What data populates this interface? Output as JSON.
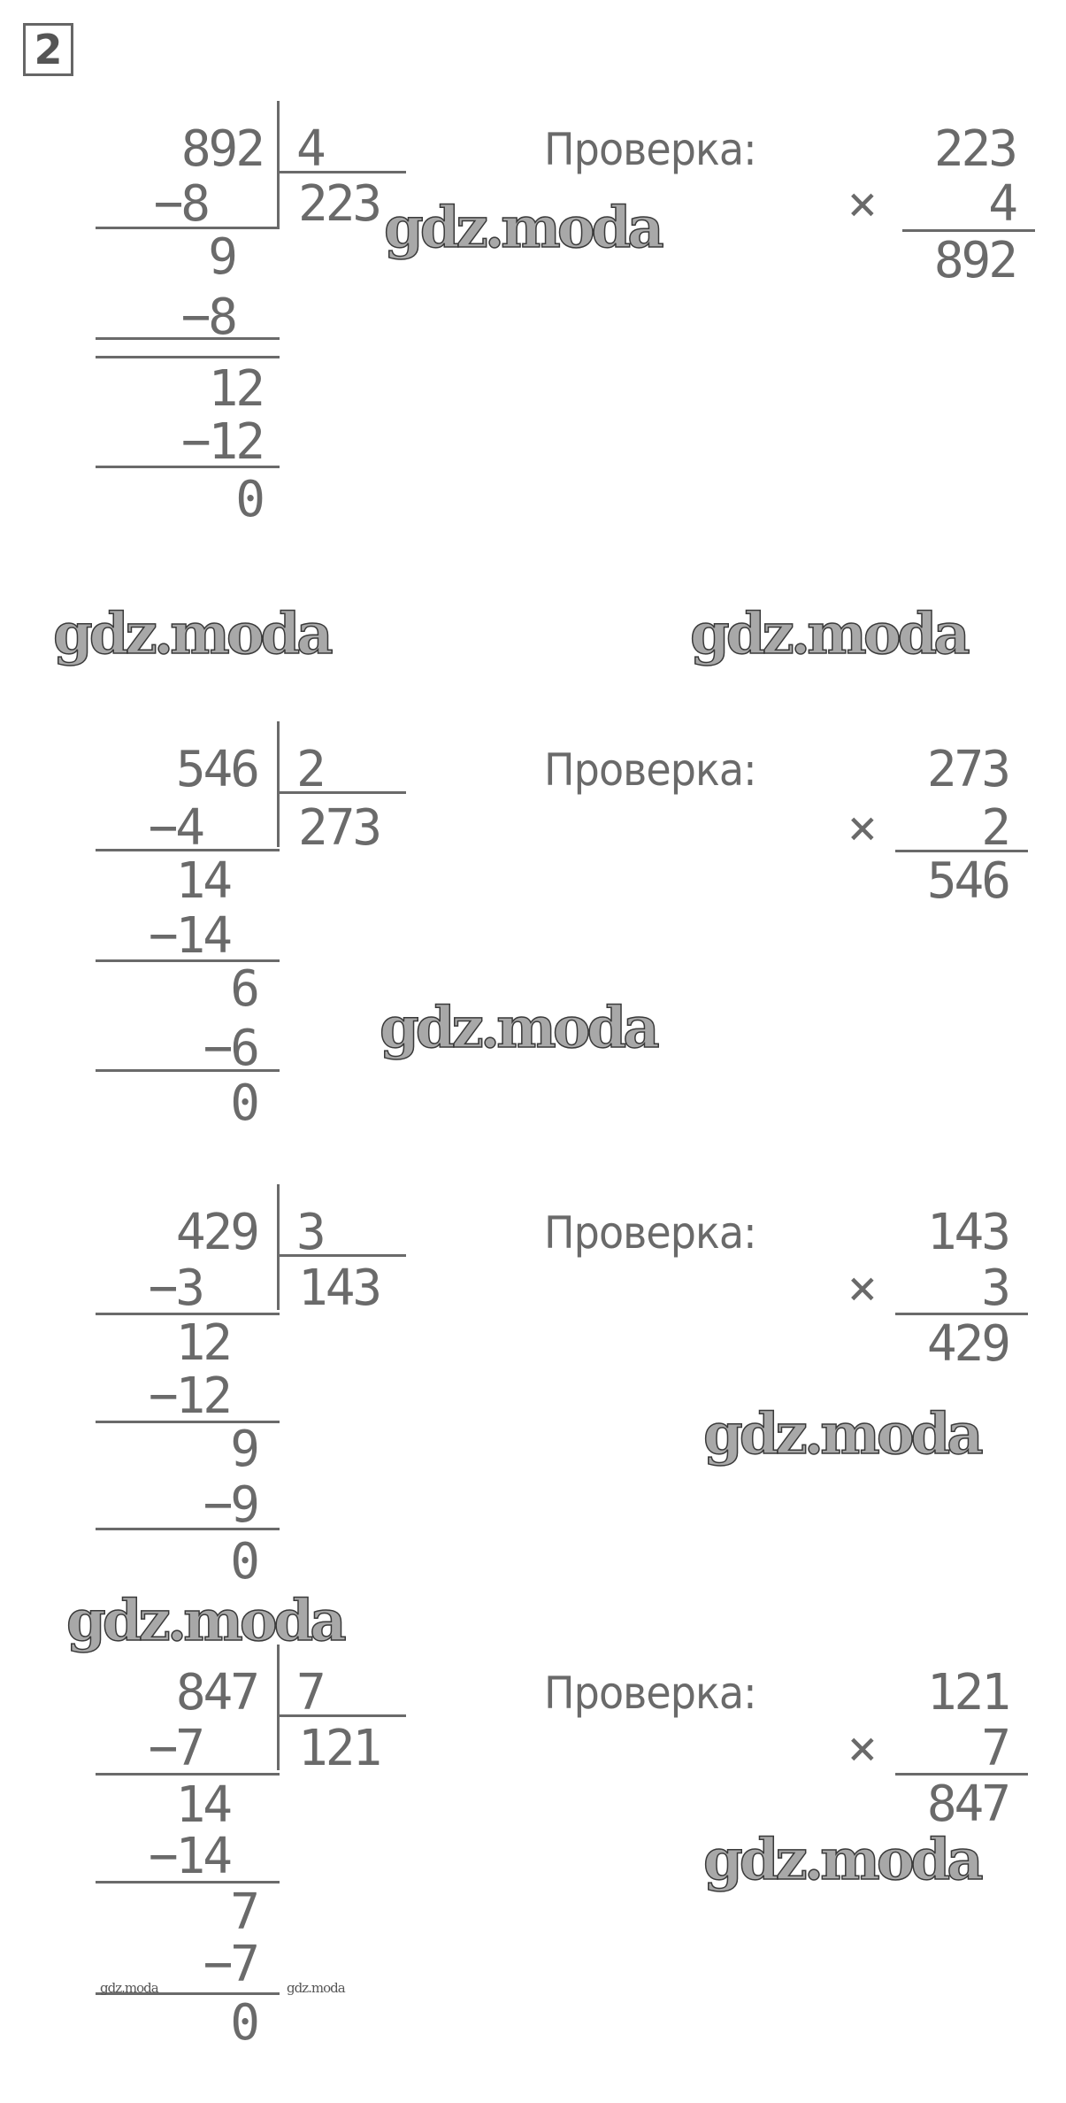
{
  "task_number": "2",
  "check_label": "Проверка:",
  "times_sign": "×",
  "watermark": "gdz.moda",
  "blocks": [
    {
      "dividend": "892",
      "divisor": "4",
      "quotient": "223",
      "steps": [
        "−8",
        "9",
        "−8",
        "12",
        "−12",
        "0"
      ],
      "check": {
        "factor1": "223",
        "factor2": "4",
        "product": "892"
      }
    },
    {
      "dividend": "546",
      "divisor": "2",
      "quotient": "273",
      "steps": [
        "−4",
        "14",
        "−14",
        "6",
        "−6",
        "0"
      ],
      "check": {
        "factor1": "273",
        "factor2": "2",
        "product": "546"
      }
    },
    {
      "dividend": "429",
      "divisor": "3",
      "quotient": "143",
      "steps": [
        "−3",
        "12",
        "−12",
        "9",
        "−9",
        "0"
      ],
      "check": {
        "factor1": "143",
        "factor2": "3",
        "product": "429"
      }
    },
    {
      "dividend": "847",
      "divisor": "7",
      "quotient": "121",
      "steps": [
        "−7",
        "14",
        "−14",
        "7",
        "−7",
        "0"
      ],
      "check": {
        "factor1": "121",
        "factor2": "7",
        "product": "847"
      }
    }
  ]
}
